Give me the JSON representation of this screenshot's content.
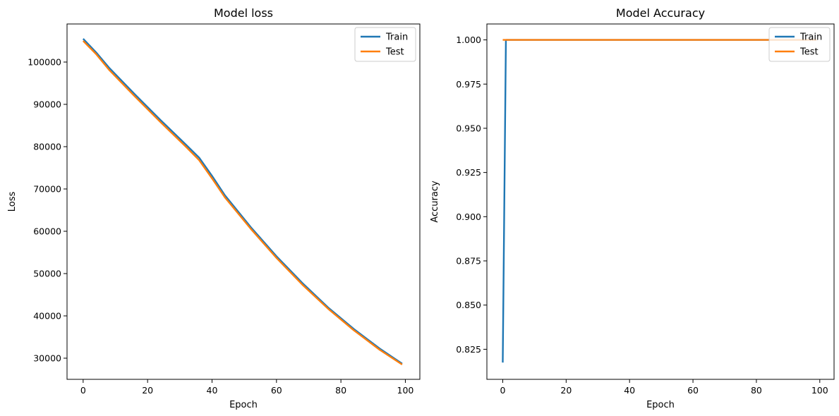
{
  "chart_data": [
    {
      "type": "line",
      "title": "Model loss",
      "xlabel": "Epoch",
      "ylabel": "Loss",
      "xlim": [
        -5,
        104.5
      ],
      "ylim": [
        25000,
        109000
      ],
      "xticks": [
        0,
        20,
        40,
        60,
        80,
        100
      ],
      "yticks": [
        30000,
        40000,
        50000,
        60000,
        70000,
        80000,
        90000,
        100000
      ],
      "grid": false,
      "legend_position": "top-right",
      "series": [
        {
          "name": "Train",
          "color": "#1f77b4",
          "x": [
            0,
            4,
            8,
            16,
            24,
            32,
            36,
            40,
            44,
            52,
            60,
            68,
            76,
            84,
            92,
            99
          ],
          "y": [
            105500,
            102300,
            98700,
            92400,
            86300,
            80400,
            77400,
            73100,
            68500,
            61000,
            54100,
            47800,
            42000,
            36900,
            32300,
            28700
          ]
        },
        {
          "name": "Test",
          "color": "#ff7f0e",
          "x": [
            0,
            4,
            8,
            16,
            24,
            32,
            36,
            40,
            44,
            52,
            60,
            68,
            76,
            84,
            92,
            99
          ],
          "y": [
            105000,
            101900,
            98200,
            91900,
            85800,
            79900,
            76800,
            72500,
            68000,
            60600,
            53700,
            47400,
            41700,
            36600,
            32000,
            28500
          ]
        }
      ]
    },
    {
      "type": "line",
      "title": "Model Accuracy",
      "xlabel": "Epoch",
      "ylabel": "Accuracy",
      "xlim": [
        -5,
        104.5
      ],
      "ylim": [
        0.808,
        1.009
      ],
      "xticks": [
        0,
        20,
        40,
        60,
        80,
        100
      ],
      "yticks": [
        0.825,
        0.85,
        0.875,
        0.9,
        0.925,
        0.95,
        0.975,
        1.0
      ],
      "grid": false,
      "legend_position": "top-right",
      "series": [
        {
          "name": "Train",
          "color": "#1f77b4",
          "x": [
            0,
            1,
            99
          ],
          "y": [
            0.8175,
            1.0,
            1.0
          ]
        },
        {
          "name": "Test",
          "color": "#ff7f0e",
          "x": [
            0,
            99
          ],
          "y": [
            1.0,
            1.0
          ]
        }
      ]
    }
  ]
}
